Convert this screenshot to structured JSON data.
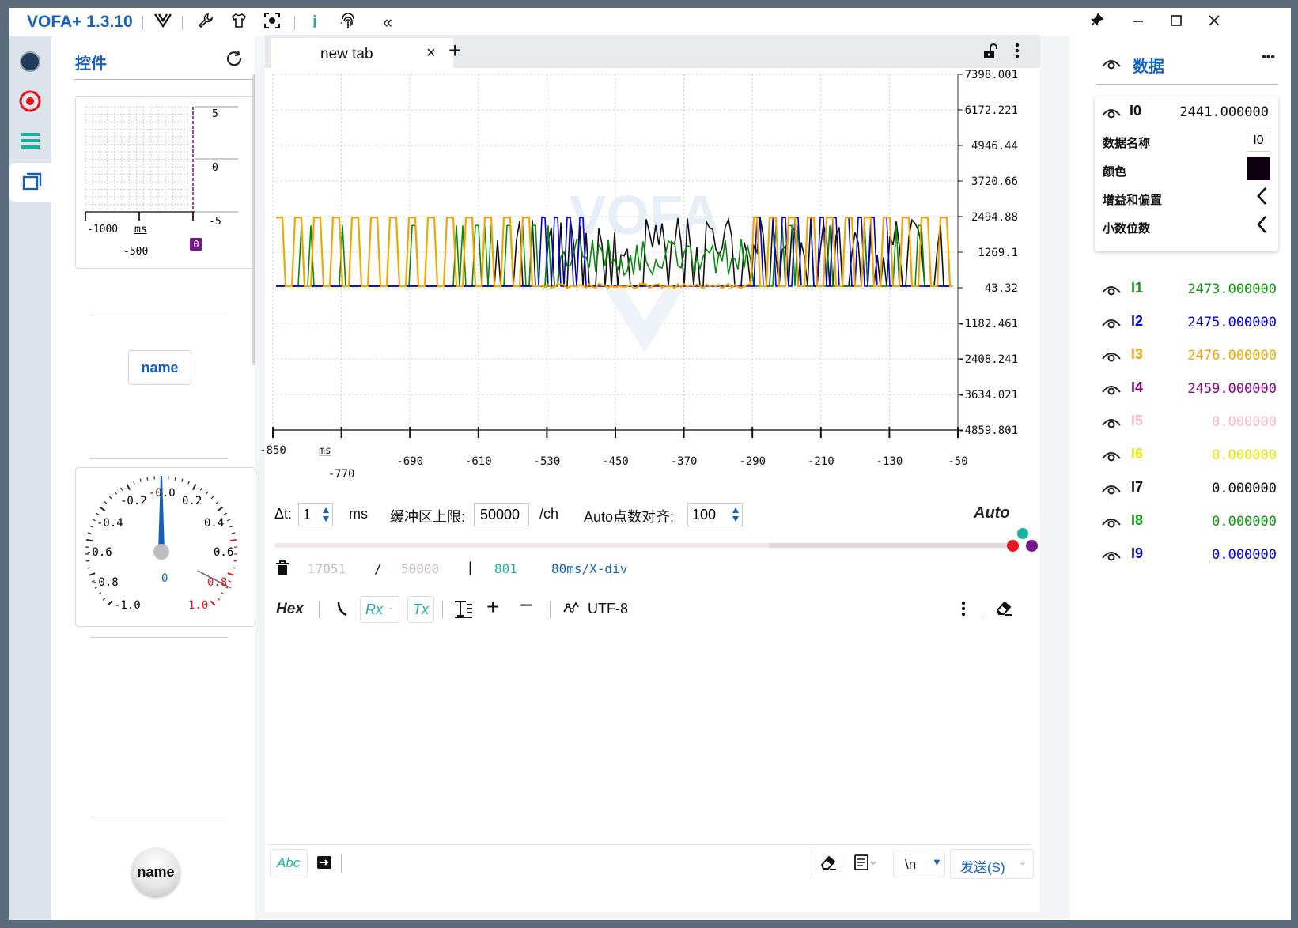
{
  "app": {
    "title": "VOFA+ 1.3.10",
    "colors": {
      "accent": "#1560bd",
      "teal": "#1bb1a0",
      "bg_strip": "#dde3ea"
    }
  },
  "titlebar": {
    "icons": [
      "vofa-logo-icon",
      "wrench-icon",
      "shirt-icon",
      "screenshot-icon",
      "info-icon",
      "fingerprint-icon",
      "double-chevron-left-icon"
    ],
    "window_controls": [
      "pin-icon",
      "minimize-icon",
      "maximize-icon",
      "close-icon"
    ]
  },
  "left_strip": {
    "items": [
      "connect-dot-icon",
      "record-icon",
      "list-icon",
      "windows-icon"
    ]
  },
  "controls_panel": {
    "title": "控件",
    "mini_plot": {
      "x_ticks": [
        "-1000",
        "-500"
      ],
      "x_unit": "ms",
      "y_ticks": [
        "5",
        "0",
        "-5"
      ],
      "badge": "0"
    },
    "name_button": "name",
    "gauge": {
      "labels_left": [
        "-0.2",
        "-0.4",
        "-0.6",
        "-0.8",
        "-1.0"
      ],
      "labels_right": [
        "0.2",
        "0.4",
        "0.6",
        "0.8",
        "1.0"
      ],
      "top_label": "-0.0",
      "value": "0"
    },
    "round_button": "name"
  },
  "tabs": {
    "active": "new tab",
    "close": "×",
    "add": "+"
  },
  "chart_data": {
    "type": "line",
    "y_ticks": [
      "7398.001",
      "6172.221",
      "4946.44",
      "3720.66",
      "2494.88",
      "1269.1",
      "43.32",
      "-1182.461",
      "-2408.241",
      "-3634.021",
      "-4859.801"
    ],
    "x_ticks": [
      "-850",
      "-770",
      "-690",
      "-610",
      "-530",
      "-450",
      "-370",
      "-290",
      "-210",
      "-130",
      "-50"
    ],
    "x_unit": "ms",
    "ylim": [
      -4859.801,
      7398.001
    ],
    "xlim": [
      -850,
      -50
    ],
    "watermark": "VOFA",
    "series": [
      {
        "name": "I0",
        "color": "#111111",
        "low": 100,
        "high": 2441
      },
      {
        "name": "I1",
        "color": "#0a8a0a",
        "low": 100,
        "high": 2473
      },
      {
        "name": "I2",
        "color": "#0000e0",
        "low": 100,
        "high": 2475
      },
      {
        "name": "I3",
        "color": "#f5a500",
        "low": 100,
        "high": 2476
      }
    ]
  },
  "config": {
    "dt_label": "Δt:",
    "dt_value": "1",
    "dt_unit": "ms",
    "buffer_label": "缓冲区上限:",
    "buffer_value": "50000",
    "buffer_unit": "/ch",
    "auto_label": "Auto点数对齐:",
    "auto_value": "100",
    "auto_mode": "Auto",
    "stats_count": "17051",
    "stats_sep": "/",
    "stats_total": "50000",
    "stats_bar": "|",
    "stats_points": "801",
    "stats_div": "80ms/X-div",
    "slider_fill": 0.67
  },
  "serial": {
    "hex": "Hex",
    "rx": "Rx",
    "tx": "Tx",
    "encoding": "UTF-8",
    "send_mode": "Abc",
    "newline": "\\n",
    "send": "发送(S)"
  },
  "data_panel": {
    "title": "数据",
    "more": "•••",
    "i0": {
      "name": "I0",
      "value": "2441.000000",
      "props": {
        "name_label": "数据名称",
        "name_value": "I0",
        "color_label": "颜色",
        "color_value": "#0e0010",
        "gain_label": "增益和偏置",
        "decimal_label": "小数位数"
      }
    },
    "channels": [
      {
        "name": "I1",
        "value": "2473.000000",
        "color": "#0a9a0a"
      },
      {
        "name": "I2",
        "value": "2475.000000",
        "color": "#0000e0"
      },
      {
        "name": "I3",
        "value": "2476.000000",
        "color": "#f5a500"
      },
      {
        "name": "I4",
        "value": "2459.000000",
        "color": "#8b008b"
      },
      {
        "name": "I5",
        "value": "0.000000",
        "color": "#ffb6c1"
      },
      {
        "name": "I6",
        "value": "0.000000",
        "color": "#e8e800"
      },
      {
        "name": "I7",
        "value": "0.000000",
        "color": "#111111"
      },
      {
        "name": "I8",
        "value": "0.000000",
        "color": "#0a9a0a"
      },
      {
        "name": "I9",
        "value": "0.000000",
        "color": "#0000e0"
      }
    ]
  }
}
